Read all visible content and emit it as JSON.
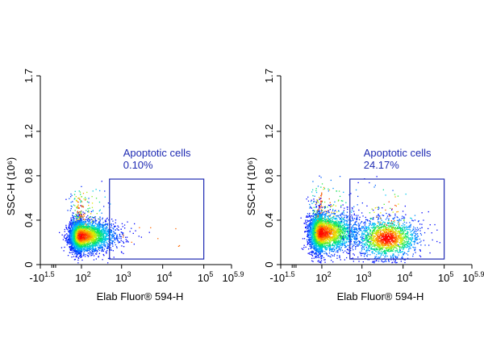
{
  "colors": {
    "axis": "#000000",
    "gate": "#1f2bb3",
    "density_low": "#0000ff",
    "density_mid": "#00e0ff",
    "density_mid2": "#00ff40",
    "density_high": "#ffff00",
    "density_max": "#ff0000"
  },
  "chart_data": [
    {
      "type": "scatter",
      "subtype": "flow-cytometry density plot",
      "xlabel": "Elab Fluor® 594-H",
      "ylabel": "SSC-H (10⁶)",
      "x_scale": "log (biexponential)",
      "x_ticks": [
        {
          "value": -31.6,
          "base": "-10",
          "exp": "1.5"
        },
        {
          "value": 100,
          "base": "10",
          "exp": "2"
        },
        {
          "value": 1000,
          "base": "10",
          "exp": "3"
        },
        {
          "value": 10000,
          "base": "10",
          "exp": "4"
        },
        {
          "value": 100000,
          "base": "10",
          "exp": "5"
        },
        {
          "value": 794328,
          "base": "10",
          "exp": "5.9"
        }
      ],
      "y_ticks": [
        "0",
        "0.4",
        "0.8",
        "1.2",
        "1.7"
      ],
      "ylim": [
        0,
        1.7
      ],
      "gate": {
        "name": "Apoptotic cells",
        "percent": "0.10%",
        "x_range": [
          500,
          100000
        ],
        "y_range": [
          0.05,
          0.77
        ]
      },
      "populations": [
        {
          "x_center_log": 1.9,
          "y_center": 0.26,
          "count": 4200,
          "spread_x": 0.45,
          "spread_y": 0.07
        }
      ],
      "sparse_events_in_gate": 9
    },
    {
      "type": "scatter",
      "subtype": "flow-cytometry density plot",
      "xlabel": "Elab Fluor® 594-H",
      "ylabel": "SSC-H (10⁶)",
      "x_scale": "log (biexponential)",
      "x_ticks": [
        {
          "value": -31.6,
          "base": "-10",
          "exp": "1.5"
        },
        {
          "value": 100,
          "base": "10",
          "exp": "2"
        },
        {
          "value": 1000,
          "base": "10",
          "exp": "3"
        },
        {
          "value": 10000,
          "base": "10",
          "exp": "4"
        },
        {
          "value": 100000,
          "base": "10",
          "exp": "5"
        },
        {
          "value": 794328,
          "base": "10",
          "exp": "5.9"
        }
      ],
      "y_ticks": [
        "0",
        "0.4",
        "0.8",
        "1.2",
        "1.7"
      ],
      "ylim": [
        0,
        1.7
      ],
      "gate": {
        "name": "Apoptotic cells",
        "percent": "24.17%",
        "x_range": [
          500,
          100000
        ],
        "y_range": [
          0.05,
          0.77
        ]
      },
      "populations": [
        {
          "x_center_log": 1.9,
          "y_center": 0.29,
          "count": 3600,
          "spread_x": 0.5,
          "spread_y": 0.09
        },
        {
          "x_center_log": 3.6,
          "y_center": 0.24,
          "count": 1700,
          "spread_x": 0.38,
          "spread_y": 0.09
        }
      ],
      "sparse_events_in_gate": 0
    }
  ]
}
